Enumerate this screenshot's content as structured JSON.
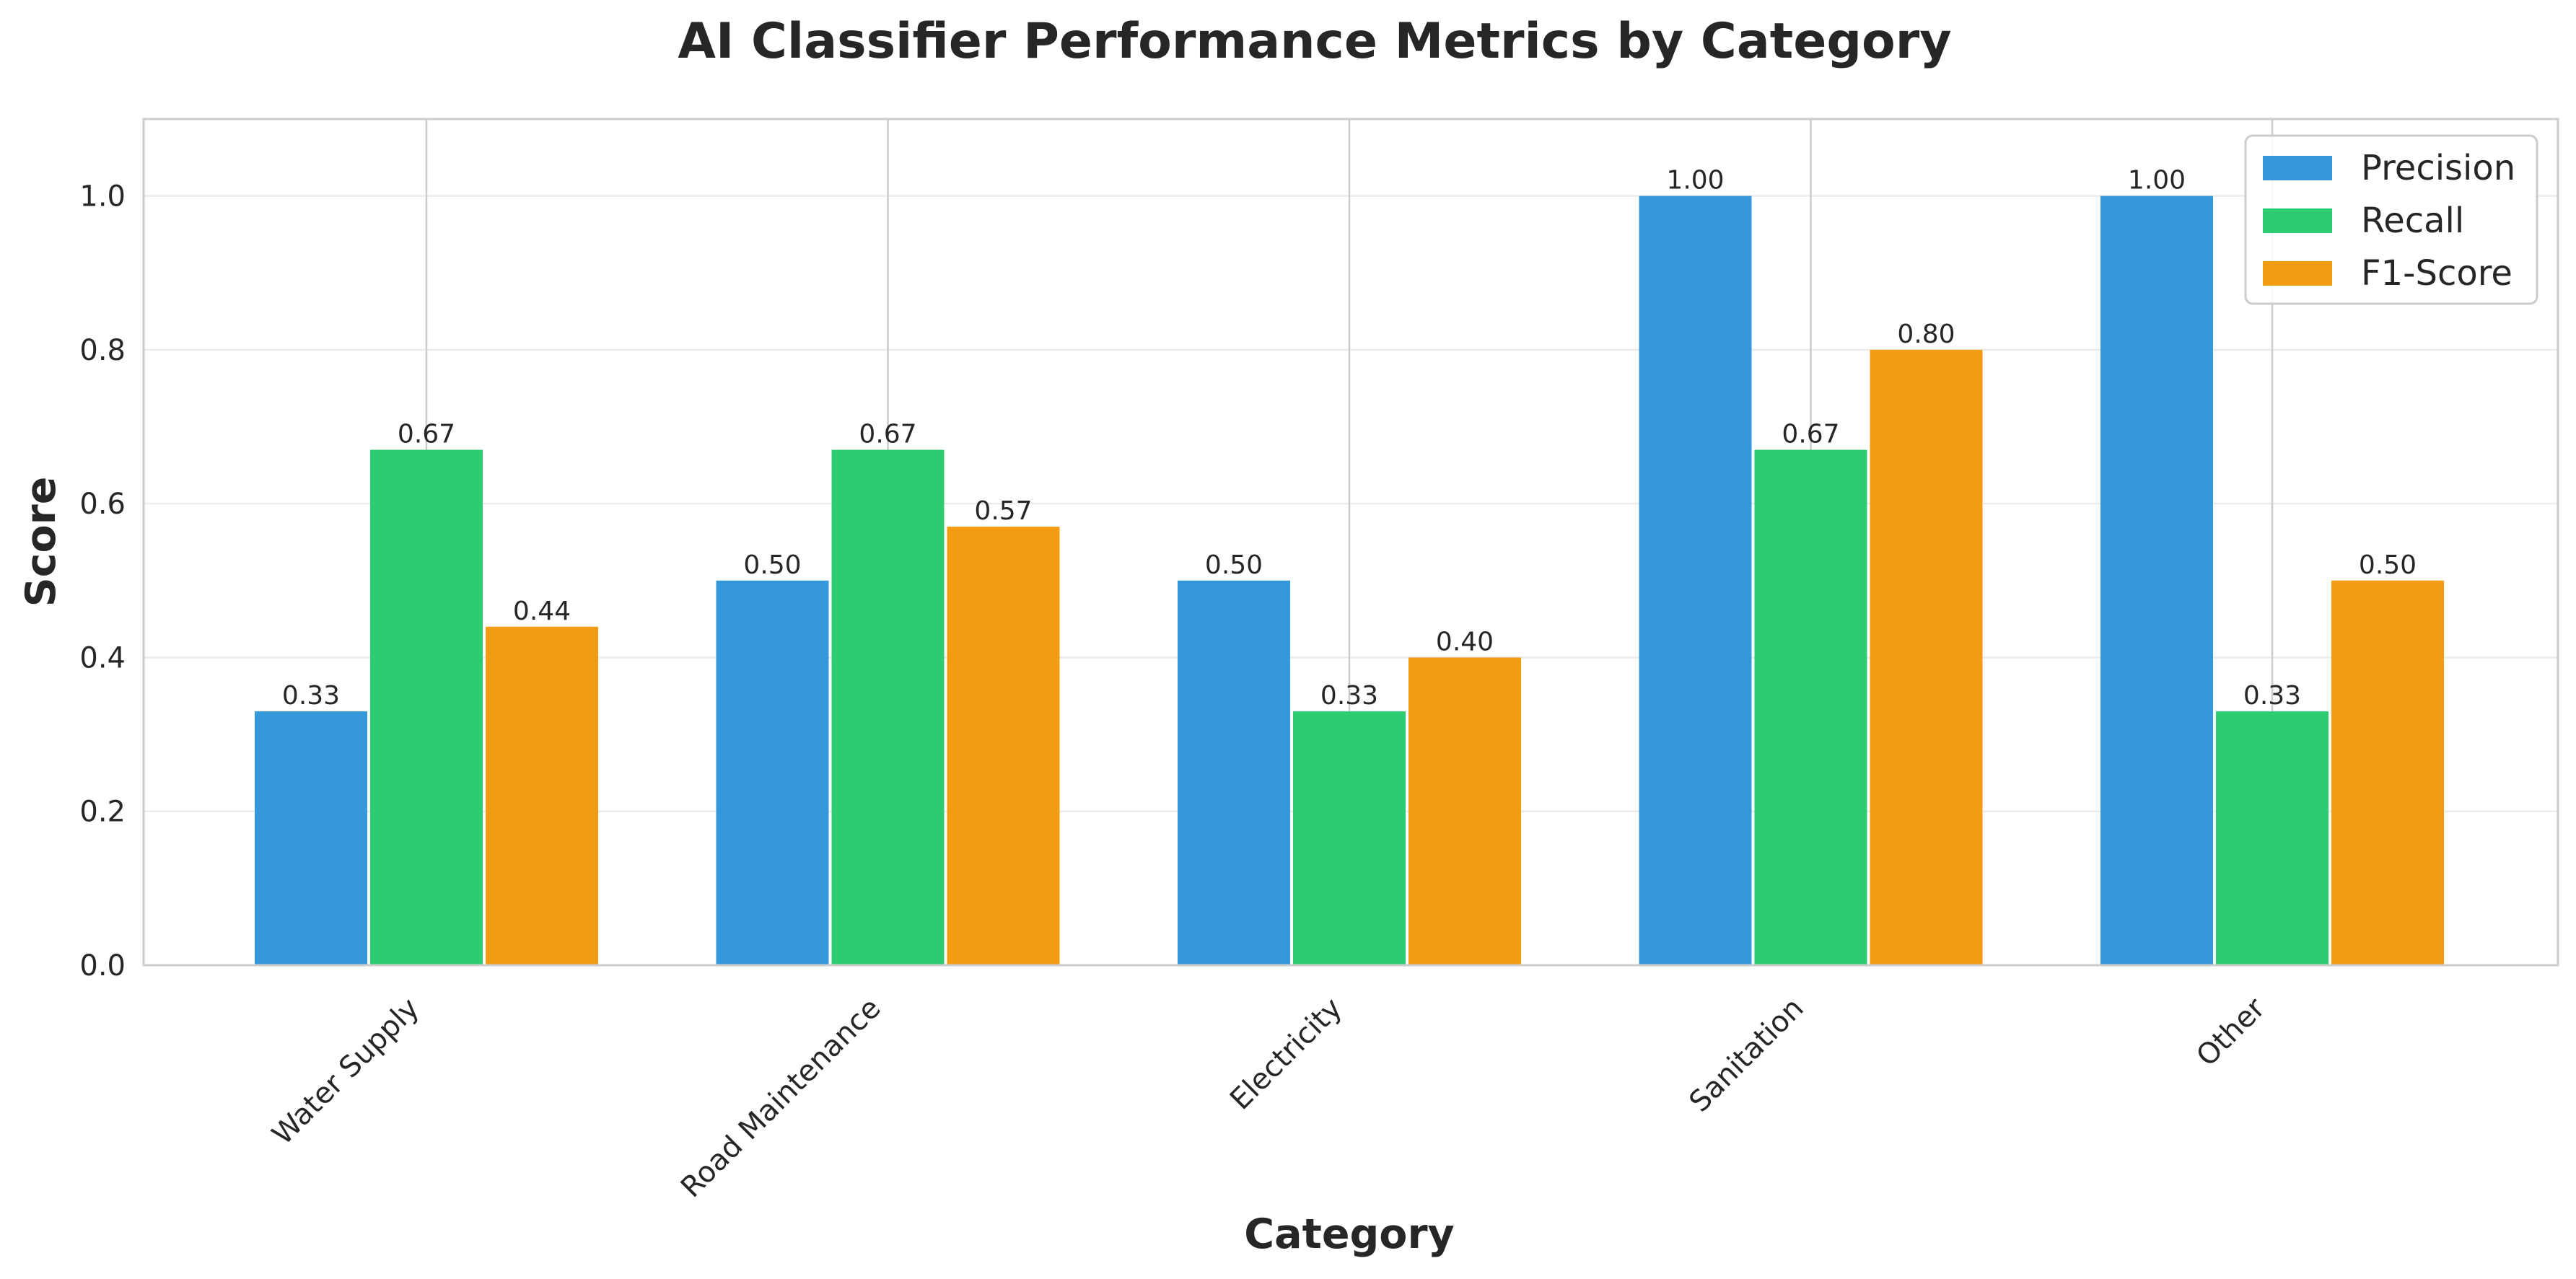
{
  "chart_data": {
    "type": "bar",
    "title": "AI Classifier Performance Metrics by Category",
    "xlabel": "Category",
    "ylabel": "Score",
    "categories": [
      "Water Supply",
      "Road Maintenance",
      "Electricity",
      "Sanitation",
      "Other"
    ],
    "series": [
      {
        "name": "Precision",
        "color": "#3498db",
        "values": [
          0.33,
          0.5,
          0.5,
          1.0,
          1.0
        ],
        "labels": [
          "0.33",
          "0.50",
          "0.50",
          "1.00",
          "1.00"
        ]
      },
      {
        "name": "Recall",
        "color": "#2ecc71",
        "values": [
          0.67,
          0.67,
          0.33,
          0.67,
          0.33
        ],
        "labels": [
          "0.67",
          "0.67",
          "0.33",
          "0.67",
          "0.33"
        ]
      },
      {
        "name": "F1-Score",
        "color": "#f39c12",
        "values": [
          0.44,
          0.57,
          0.4,
          0.8,
          0.5
        ],
        "labels": [
          "0.44",
          "0.57",
          "0.40",
          "0.80",
          "0.50"
        ]
      }
    ],
    "ylim": [
      0,
      1.1
    ],
    "yticks": [
      "0.0",
      "0.2",
      "0.4",
      "0.6",
      "0.8",
      "1.0"
    ],
    "grid": true,
    "legend": "top-right"
  }
}
